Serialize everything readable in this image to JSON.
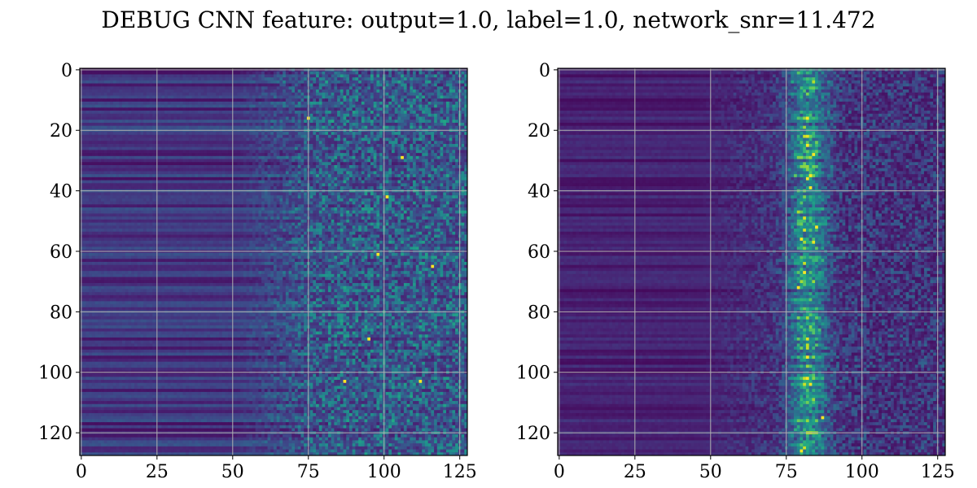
{
  "figure": {
    "title": "DEBUG CNN feature: output=1.0, label=1.0, network_snr=11.472"
  },
  "chart_data": [
    {
      "type": "heatmap",
      "name": "left-feature-map",
      "rows": 128,
      "cols": 128,
      "xlim": [
        -0.5,
        127.5
      ],
      "ylim": [
        127.5,
        -0.5
      ],
      "xticks": [
        0,
        25,
        50,
        75,
        100,
        125
      ],
      "xtick_labels": [
        "0",
        "25",
        "50",
        "75",
        "100",
        "125"
      ],
      "yticks": [
        0,
        20,
        40,
        60,
        80,
        100,
        120
      ],
      "ytick_labels": [
        "0",
        "20",
        "40",
        "60",
        "80",
        "100",
        "120"
      ],
      "grid": true,
      "colormap": "viridis",
      "pattern": "low uniform striped values for columns 0-50, increasing noisy activation for columns 60-127",
      "hotspots": [
        [
          103,
          87
        ],
        [
          103,
          112
        ],
        [
          42,
          101
        ],
        [
          61,
          98
        ],
        [
          65,
          116
        ],
        [
          89,
          95
        ],
        [
          29,
          106
        ],
        [
          16,
          75
        ]
      ]
    },
    {
      "type": "heatmap",
      "name": "right-feature-map",
      "rows": 128,
      "cols": 128,
      "xlim": [
        -0.5,
        127.5
      ],
      "ylim": [
        127.5,
        -0.5
      ],
      "xticks": [
        0,
        25,
        50,
        75,
        100,
        125
      ],
      "xtick_labels": [
        "0",
        "25",
        "50",
        "75",
        "100",
        "125"
      ],
      "yticks": [
        0,
        20,
        40,
        60,
        80,
        100,
        120
      ],
      "ytick_labels": [
        "0",
        "20",
        "40",
        "60",
        "80",
        "100",
        "120"
      ],
      "grid": true,
      "colormap": "viridis",
      "pattern": "low values for columns 0-45, bright vertical band around columns 75-90, noisy moderate values beyond",
      "hotspots": [
        [
          25,
          82
        ],
        [
          28,
          84
        ],
        [
          36,
          82
        ],
        [
          39,
          83
        ],
        [
          52,
          85
        ],
        [
          56,
          80
        ],
        [
          72,
          79
        ],
        [
          95,
          82
        ],
        [
          115,
          87
        ],
        [
          126,
          80
        ]
      ]
    }
  ],
  "colors": {
    "viridis_low": "#440154",
    "viridis_mid": "#21918c",
    "viridis_high": "#fde725",
    "grid": "#b0b0b0",
    "axis": "#000000"
  }
}
